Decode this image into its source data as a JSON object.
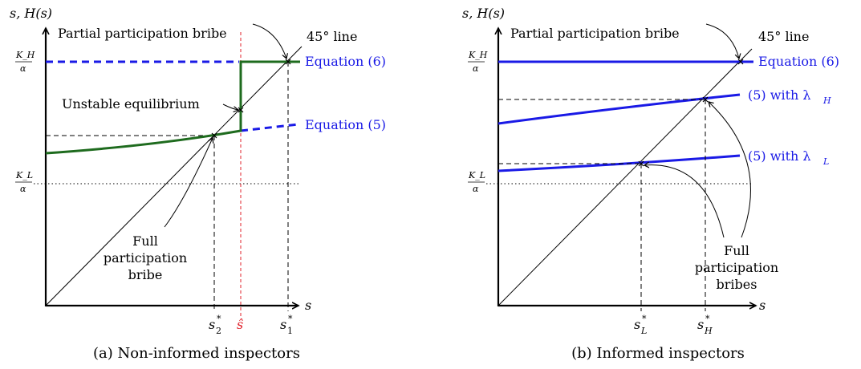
{
  "panel_a": {
    "y_axis_label": "s, H(s)",
    "x_axis_label": "s",
    "kh_num": "K_H",
    "kh_den": "α",
    "kl_num": "K_L",
    "kl_den": "α",
    "line45": "45° line",
    "partial_label": "Partial participation bribe",
    "eq6_label": "Equation (6)",
    "eq5_label": "Equation (5)",
    "unstable_label": "Unstable equilibrium",
    "full_line1": "Full",
    "full_line2": "participation",
    "full_line3": "bribe",
    "tick_s2": "s",
    "tick_s2_sup": "*",
    "tick_s2_sub": "2",
    "tick_shat": "ŝ",
    "tick_s1": "s",
    "tick_s1_sup": "*",
    "tick_s1_sub": "1",
    "caption": "(a) Non-informed inspectors"
  },
  "panel_b": {
    "y_axis_label": "s, H(s)",
    "x_axis_label": "s",
    "kh_num": "K_H",
    "kh_den": "α",
    "kl_num": "K_L",
    "kl_den": "α",
    "line45": "45° line",
    "partial_label": "Partial participation bribe",
    "eq6_label": "Equation (6)",
    "lh_label": "(5) with λ",
    "lh_sub": "H",
    "ll_label": "(5) with λ",
    "ll_sub": "L",
    "full_line1": "Full",
    "full_line2": "participation",
    "full_line3": "bribes",
    "tick_sl": "s",
    "tick_sl_sup": "*",
    "tick_sl_sub": "L",
    "tick_sh": "s",
    "tick_sh_sup": "*",
    "tick_sh_sub": "H",
    "caption": "(b) Informed inspectors"
  },
  "colors": {
    "green": "#1e6b1e",
    "blue": "#1a1ae6",
    "red": "#e0202a",
    "black": "#000000"
  }
}
